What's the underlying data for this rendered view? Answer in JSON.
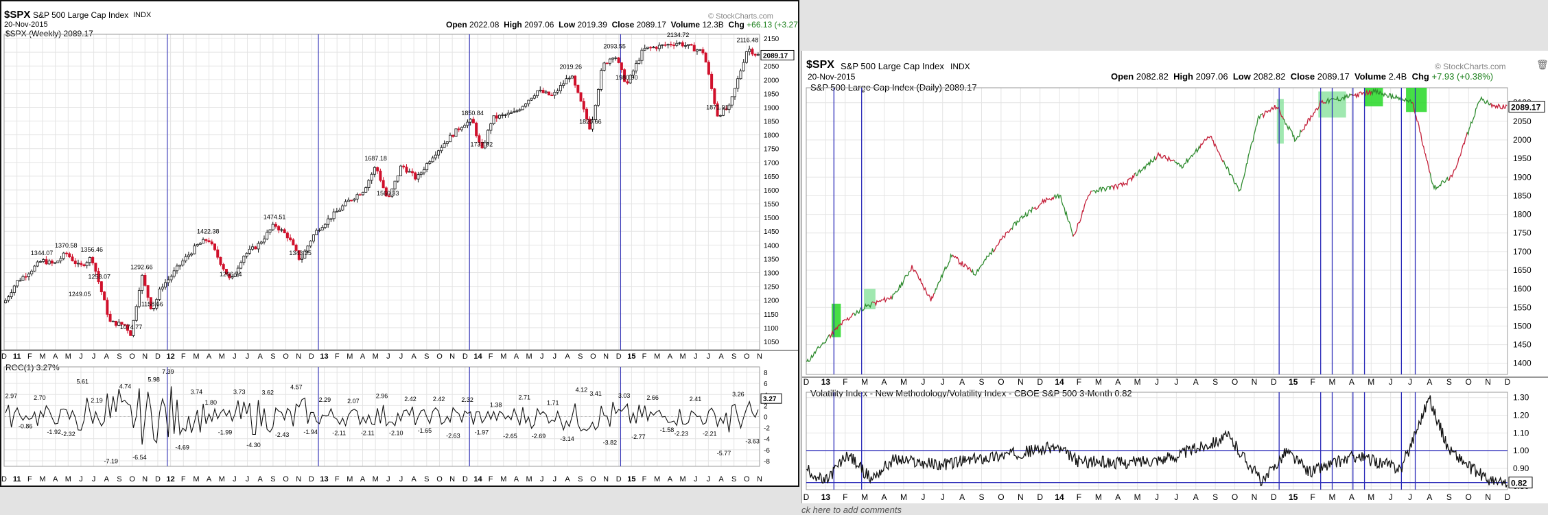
{
  "left": {
    "symbol": "$SPX",
    "name": "S&P 500 Large Cap Index",
    "exchange": "INDX",
    "date": "20-Nov-2015",
    "watermark": "© StockCharts.com",
    "ohlc": {
      "open_label": "Open",
      "open": "2022.08",
      "high_label": "High",
      "high": "2097.06",
      "low_label": "Low",
      "low": "2019.39",
      "close_label": "Close",
      "close": "2089.17",
      "volume_label": "Volume",
      "volume": "12.3B",
      "chg_label": "Chg",
      "chg": "+66.13 (+3.27%)"
    },
    "legend_price": "$SPX (Weekly) 2089.17",
    "legend_roc": "ROC(1) 3.27%",
    "price_tag": "2089.17",
    "roc_tag": "3.27"
  },
  "right": {
    "symbol": "$SPX",
    "name": "S&P 500 Large Cap Index",
    "exchange": "INDX",
    "date": "20-Nov-2015",
    "watermark": "© StockCharts.com",
    "ohlc": {
      "open_label": "Open",
      "open": "2082.82",
      "high_label": "High",
      "high": "2097.06",
      "low_label": "Low",
      "low": "2082.82",
      "close_label": "Close",
      "close": "2089.17",
      "volume_label": "Volume",
      "volume": "2.4B",
      "chg_label": "Chg",
      "chg": "+7.93 (+0.38%)"
    },
    "legend_price": "S&P 500 Large Cap Index (Daily) 2089.17",
    "legend_vol": "Volatility Index - New Methodology/Volatility Index - CBOE S&P 500 3-Month 0.82",
    "price_tag": "2089.17",
    "vol_tag": "0.82"
  },
  "footer": "ck here to add comments",
  "chart_data": [
    {
      "type": "candlestick",
      "panel": "left-price",
      "yticks": [
        1050,
        1100,
        1150,
        1200,
        1250,
        1300,
        1350,
        1400,
        1450,
        1500,
        1550,
        1600,
        1650,
        1700,
        1750,
        1800,
        1850,
        1900,
        1950,
        2000,
        2050,
        2100,
        2150
      ],
      "ylim": [
        1020,
        2165
      ],
      "x_labels": [
        "D",
        "11",
        "F",
        "M",
        "A",
        "M",
        "J",
        "J",
        "A",
        "S",
        "O",
        "N",
        "D",
        "12",
        "F",
        "M",
        "A",
        "M",
        "J",
        "J",
        "A",
        "S",
        "O",
        "N",
        "D",
        "13",
        "F",
        "M",
        "A",
        "M",
        "J",
        "J",
        "A",
        "S",
        "O",
        "N",
        "D",
        "14",
        "F",
        "M",
        "A",
        "M",
        "J",
        "J",
        "A",
        "S",
        "O",
        "N",
        "D",
        "15",
        "F",
        "M",
        "A",
        "M",
        "J",
        "J",
        "A",
        "S",
        "O",
        "N"
      ],
      "x_range_months": [
        2010.92,
        2015.92
      ],
      "vlines": [
        2012.0,
        2013.0,
        2014.0,
        2015.0
      ],
      "points": [
        [
          2010.92,
          1190
        ],
        [
          2011.0,
          1265
        ],
        [
          2011.08,
          1300
        ],
        [
          2011.17,
          1344.07
        ],
        [
          2011.25,
          1330
        ],
        [
          2011.33,
          1370.58
        ],
        [
          2011.42,
          1320
        ],
        [
          2011.5,
          1356.46
        ],
        [
          2011.55,
          1258.07
        ],
        [
          2011.58,
          1200
        ],
        [
          2011.62,
          1120
        ],
        [
          2011.72,
          1110
        ],
        [
          2011.76,
          1074.77
        ],
        [
          2011.8,
          1200
        ],
        [
          2011.83,
          1292.66
        ],
        [
          2011.9,
          1158.66
        ],
        [
          2011.96,
          1250
        ],
        [
          2012.0,
          1270
        ],
        [
          2012.1,
          1340
        ],
        [
          2012.2,
          1400
        ],
        [
          2012.27,
          1422.38
        ],
        [
          2012.35,
          1340
        ],
        [
          2012.42,
          1266.74
        ],
        [
          2012.5,
          1360
        ],
        [
          2012.6,
          1400
        ],
        [
          2012.71,
          1474.51
        ],
        [
          2012.8,
          1430
        ],
        [
          2012.88,
          1343.35
        ],
        [
          2012.96,
          1430
        ],
        [
          2013.0,
          1460
        ],
        [
          2013.1,
          1510
        ],
        [
          2013.2,
          1560
        ],
        [
          2013.3,
          1600
        ],
        [
          2013.38,
          1687.18
        ],
        [
          2013.46,
          1560.33
        ],
        [
          2013.55,
          1690
        ],
        [
          2013.65,
          1640
        ],
        [
          2013.75,
          1720
        ],
        [
          2013.85,
          1780
        ],
        [
          2013.96,
          1840
        ],
        [
          2014.02,
          1850.84
        ],
        [
          2014.08,
          1737.92
        ],
        [
          2014.15,
          1860
        ],
        [
          2014.3,
          1880
        ],
        [
          2014.45,
          1960
        ],
        [
          2014.55,
          1940
        ],
        [
          2014.67,
          2019.26
        ],
        [
          2014.8,
          1820.66
        ],
        [
          2014.88,
          2050
        ],
        [
          2014.96,
          2093.55
        ],
        [
          2015.04,
          1980.9
        ],
        [
          2015.15,
          2110
        ],
        [
          2015.38,
          2134.72
        ],
        [
          2015.55,
          2100
        ],
        [
          2015.64,
          1871.91
        ],
        [
          2015.72,
          1900
        ],
        [
          2015.84,
          2116.48
        ],
        [
          2015.9,
          2089.17
        ]
      ],
      "annotations": [
        [
          "1344.07",
          2011.17
        ],
        [
          "1370.58",
          2011.33
        ],
        [
          "1356.46",
          2011.5
        ],
        [
          "1249.05",
          2011.42
        ],
        [
          "1258.07",
          2011.55
        ],
        [
          "1074.77",
          2011.76
        ],
        [
          "1292.66",
          2011.83
        ],
        [
          "1158.66",
          2011.9
        ],
        [
          "1422.38",
          2012.27
        ],
        [
          "1266.74",
          2012.42
        ],
        [
          "1474.51",
          2012.71
        ],
        [
          "1343.35",
          2012.88
        ],
        [
          "1687.18",
          2013.38
        ],
        [
          "1560.33",
          2013.46
        ],
        [
          "1850.84",
          2014.02
        ],
        [
          "1737.92",
          2014.08
        ],
        [
          "2019.26",
          2014.67
        ],
        [
          "1820.66",
          2014.8
        ],
        [
          "2093.55",
          2014.96
        ],
        [
          "1980.90",
          2015.04
        ],
        [
          "2134.72",
          2015.38
        ],
        [
          "1871.91",
          2015.64
        ],
        [
          "2116.48",
          2015.84
        ]
      ]
    },
    {
      "type": "line",
      "panel": "left-roc",
      "yticks": [
        -8,
        -6,
        -4,
        -2,
        0,
        2,
        4,
        6,
        8
      ],
      "ylim": [
        -9,
        9
      ],
      "labels": [
        "2.97",
        "-0.86",
        "2.70",
        "-1.92",
        "-2.32",
        "5.61",
        "2.19",
        "-7.19",
        "4.74",
        "-6.54",
        "5.98",
        "7.39",
        "-4.69",
        "3.74",
        "1.80",
        "-1.99",
        "3.73",
        "-4.30",
        "3.62",
        "-2.43",
        "4.57",
        "-1.94",
        "2.29",
        "-2.11",
        "2.07",
        "-2.11",
        "2.96",
        "-2.10",
        "2.42",
        "-1.65",
        "2.42",
        "-2.63",
        "2.32",
        "-1.97",
        "1.38",
        "-2.65",
        "2.71",
        "-2.69",
        "1.71",
        "-3.14",
        "4.12",
        "3.41",
        "-3.82",
        "3.03",
        "-2.77",
        "2.66",
        "-1.58",
        "-2.23",
        "2.41",
        "-2.21",
        "-5.77",
        "3.26",
        "-3.63"
      ]
    },
    {
      "type": "line",
      "panel": "right-price",
      "yticks": [
        1400,
        1450,
        1500,
        1550,
        1600,
        1650,
        1700,
        1750,
        1800,
        1850,
        1900,
        1950,
        2000,
        2050,
        2100
      ],
      "ylim": [
        1370,
        2140
      ],
      "x_labels": [
        "D",
        "13",
        "F",
        "M",
        "A",
        "M",
        "J",
        "J",
        "A",
        "S",
        "O",
        "N",
        "D",
        "14",
        "F",
        "M",
        "A",
        "M",
        "J",
        "J",
        "A",
        "S",
        "O",
        "N",
        "D",
        "15",
        "F",
        "M",
        "A",
        "M",
        "J",
        "J",
        "A",
        "S",
        "O",
        "N",
        "D"
      ],
      "points": [
        [
          2012.92,
          1400
        ],
        [
          2013.0,
          1460
        ],
        [
          2013.08,
          1510
        ],
        [
          2013.17,
          1550
        ],
        [
          2013.3,
          1580
        ],
        [
          2013.38,
          1660
        ],
        [
          2013.46,
          1570
        ],
        [
          2013.55,
          1690
        ],
        [
          2013.65,
          1640
        ],
        [
          2013.75,
          1720
        ],
        [
          2013.85,
          1790
        ],
        [
          2013.96,
          1840
        ],
        [
          2014.02,
          1850
        ],
        [
          2014.08,
          1740
        ],
        [
          2014.15,
          1860
        ],
        [
          2014.3,
          1880
        ],
        [
          2014.45,
          1960
        ],
        [
          2014.55,
          1930
        ],
        [
          2014.67,
          2010
        ],
        [
          2014.8,
          1860
        ],
        [
          2014.88,
          2060
        ],
        [
          2014.96,
          2090
        ],
        [
          2015.04,
          2000
        ],
        [
          2015.15,
          2100
        ],
        [
          2015.38,
          2130
        ],
        [
          2015.55,
          2100
        ],
        [
          2015.64,
          1870
        ],
        [
          2015.72,
          1900
        ],
        [
          2015.84,
          2110
        ],
        [
          2015.9,
          2089
        ]
      ]
    },
    {
      "type": "line",
      "panel": "right-vol",
      "yticks": [
        0.8,
        0.9,
        1.0,
        1.1,
        1.2,
        1.3
      ],
      "ylim": [
        0.78,
        1.33
      ],
      "hlines": [
        1.0,
        0.82
      ],
      "points": [
        [
          2012.92,
          0.9
        ],
        [
          2013.0,
          0.82
        ],
        [
          2013.1,
          0.98
        ],
        [
          2013.2,
          0.84
        ],
        [
          2013.3,
          0.95
        ],
        [
          2013.5,
          0.92
        ],
        [
          2013.7,
          0.96
        ],
        [
          2014.0,
          1.02
        ],
        [
          2014.1,
          0.94
        ],
        [
          2014.3,
          0.93
        ],
        [
          2014.5,
          0.96
        ],
        [
          2014.75,
          1.08
        ],
        [
          2014.9,
          0.82
        ],
        [
          2015.0,
          1.0
        ],
        [
          2015.1,
          0.88
        ],
        [
          2015.3,
          0.97
        ],
        [
          2015.5,
          0.9
        ],
        [
          2015.62,
          1.3
        ],
        [
          2015.7,
          1.02
        ],
        [
          2015.8,
          0.9
        ],
        [
          2015.9,
          0.82
        ]
      ]
    }
  ]
}
